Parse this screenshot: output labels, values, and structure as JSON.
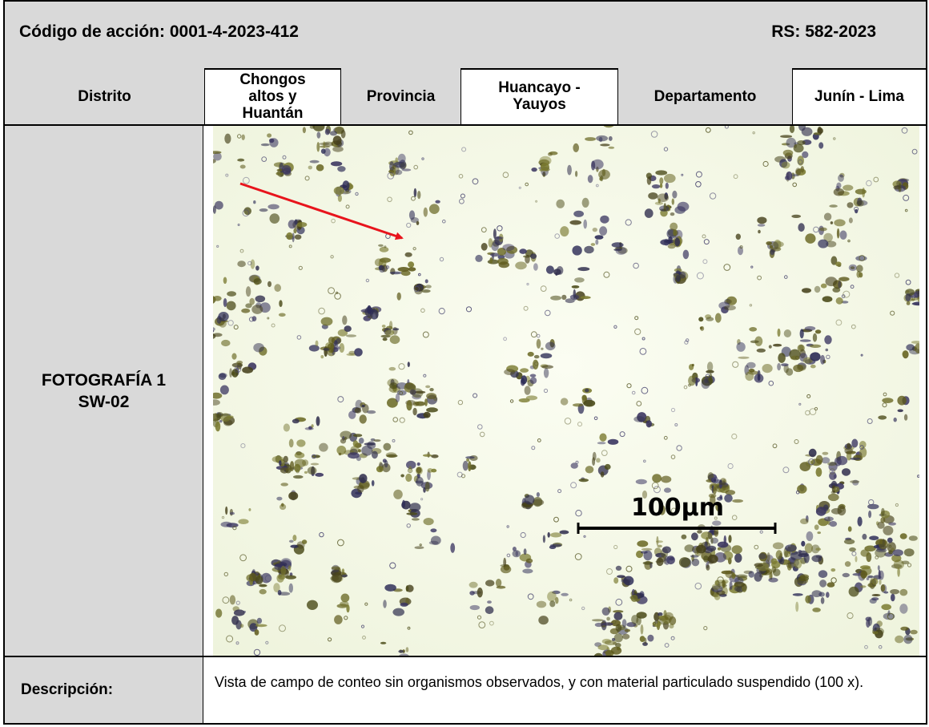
{
  "header": {
    "action_code": "Código de acción: 0001-4-2023-412",
    "rs": "RS: 582-2023"
  },
  "location": {
    "district_label": "Distrito",
    "district_value": "Chongos altos y Huantán",
    "province_label": "Provincia",
    "province_value": "Huancayo - Yauyos",
    "department_label": "Departamento",
    "department_value": "Junín - Lima"
  },
  "photo": {
    "label_line1": "FOTOGRAFÍA 1",
    "label_line2": "SW-02",
    "scale_bar_label": "100µm",
    "arrow_color": "#e8141c"
  },
  "description": {
    "label": "Descripción:",
    "text": "Vista de campo de conteo sin organismos observados, y con material particulado suspendido (100 x)."
  }
}
